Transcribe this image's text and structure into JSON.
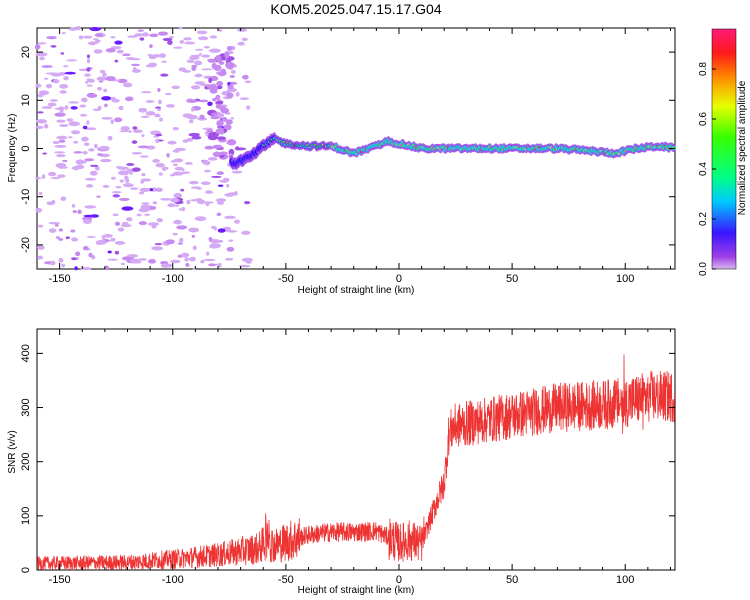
{
  "title": "KOM5.2025.047.15.17.G04",
  "chart_data": [
    {
      "type": "heatmap",
      "name": "spectrogram",
      "xlabel": "Height of straight line (km)",
      "ylabel": "Frequency (Hz)",
      "xlim": [
        -160,
        122
      ],
      "ylim": [
        -25,
        25
      ],
      "x_ticks": [
        -150,
        -100,
        -50,
        0,
        50,
        100
      ],
      "y_ticks": [
        -20,
        -10,
        0,
        10,
        20
      ],
      "ridge_x": [
        -72,
        -65,
        -60,
        -55,
        -50,
        -40,
        -30,
        -20,
        -10,
        -5,
        0,
        10,
        30,
        50,
        70,
        85,
        95,
        105,
        115,
        122
      ],
      "ridge_frequency": [
        -3,
        -1.5,
        0.5,
        2,
        1,
        0.5,
        0.5,
        -1,
        0.5,
        1.5,
        1,
        0,
        0,
        0,
        0,
        -0.5,
        -1,
        0,
        0.5,
        0
      ],
      "colorbar": {
        "label": "Normalized spectral amplitude",
        "range": [
          0,
          0.96
        ],
        "ticks": [
          "0.0",
          "0.2",
          "0.4",
          "0.6",
          "0.8"
        ]
      }
    },
    {
      "type": "line",
      "name": "snr",
      "xlabel": "Height of straight line (km)",
      "ylabel": "SNR (v/v)",
      "xlim": [
        -160,
        122
      ],
      "ylim": [
        0,
        445
      ],
      "x_ticks": [
        -150,
        -100,
        -50,
        0,
        50,
        100
      ],
      "y_ticks": [
        0,
        100,
        200,
        300,
        400
      ],
      "color": "#ee3333",
      "trend_x": [
        -160,
        -120,
        -100,
        -80,
        -62,
        -58,
        -55,
        -50,
        -40,
        -30,
        -20,
        -10,
        0,
        5,
        10,
        17,
        20,
        22,
        24,
        30,
        50,
        70,
        90,
        100,
        110,
        122
      ],
      "trend_snr": [
        12,
        14,
        20,
        28,
        40,
        55,
        45,
        52,
        65,
        70,
        70,
        72,
        50,
        55,
        48,
        130,
        160,
        250,
        265,
        270,
        285,
        300,
        305,
        310,
        320,
        320
      ]
    }
  ]
}
